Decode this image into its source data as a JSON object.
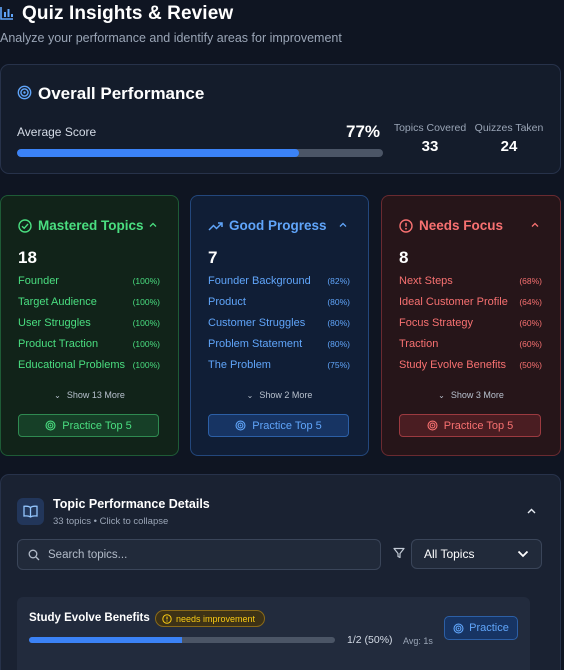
{
  "header": {
    "title": "Quiz Insights & Review",
    "subtitle": "Analyze your performance and identify areas for improvement"
  },
  "overall": {
    "title": "Overall Performance",
    "avg_label": "Average Score",
    "avg_value": "77%",
    "avg_fraction": 0.77,
    "topics_label": "Topics Covered",
    "topics_value": "33",
    "quizzes_label": "Quizzes Taken",
    "quizzes_value": "24"
  },
  "categories": {
    "mastered": {
      "title": "Mastered Topics",
      "count": "18",
      "items": [
        {
          "name": "Founder",
          "pct": "(100%)"
        },
        {
          "name": "Target Audience",
          "pct": "(100%)"
        },
        {
          "name": "User Struggles",
          "pct": "(100%)"
        },
        {
          "name": "Product Traction",
          "pct": "(100%)"
        },
        {
          "name": "Educational Problems",
          "pct": "(100%)"
        }
      ],
      "more": "Show 13 More",
      "button": "Practice Top 5"
    },
    "good": {
      "title": "Good Progress",
      "count": "7",
      "items": [
        {
          "name": "Founder Background",
          "pct": "(82%)"
        },
        {
          "name": "Product",
          "pct": "(80%)"
        },
        {
          "name": "Customer Struggles",
          "pct": "(80%)"
        },
        {
          "name": "Problem Statement",
          "pct": "(80%)"
        },
        {
          "name": "The Problem",
          "pct": "(75%)"
        }
      ],
      "more": "Show 2 More",
      "button": "Practice Top 5"
    },
    "focus": {
      "title": "Needs Focus",
      "count": "8",
      "items": [
        {
          "name": "Next Steps",
          "pct": "(68%)"
        },
        {
          "name": "Ideal Customer Profile",
          "pct": "(64%)"
        },
        {
          "name": "Focus Strategy",
          "pct": "(60%)"
        },
        {
          "name": "Traction",
          "pct": "(60%)"
        },
        {
          "name": "Study Evolve Benefits",
          "pct": "(50%)"
        }
      ],
      "more": "Show 3 More",
      "button": "Practice Top 5"
    }
  },
  "details": {
    "title": "Topic Performance Details",
    "subtitle": "33 topics • Click to collapse",
    "search_placeholder": "Search topics...",
    "filter_value": "All Topics"
  },
  "topic_row": {
    "name": "Study Evolve Benefits",
    "badge": "needs improvement",
    "progress_fraction": 0.5,
    "count": "1/2 (50%)",
    "avg": "Avg: 1s",
    "button": "Practice"
  },
  "colors": {
    "accent_blue": "#3b82f6",
    "green": "#4ade80",
    "blue": "#60a5fa",
    "red": "#f87171",
    "yellow": "#facc15"
  }
}
